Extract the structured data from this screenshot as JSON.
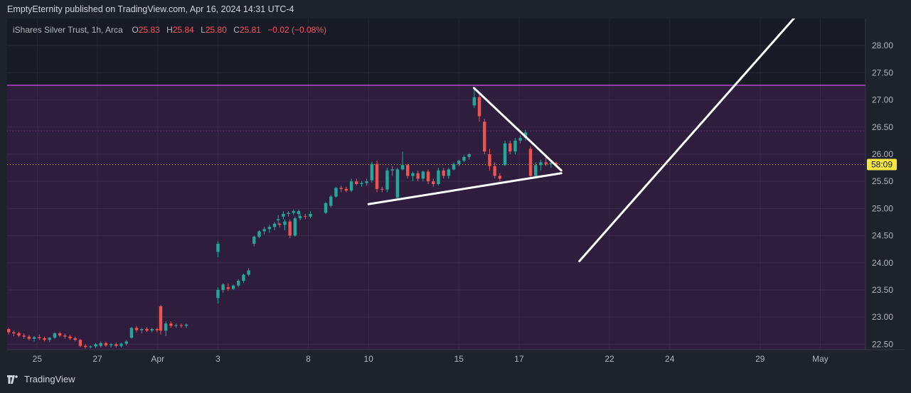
{
  "header": {
    "publisher": "EmptyEternity published on TradingView.com, Apr 16, 2024 14:31 UTC-4"
  },
  "legend": {
    "symbol": "iShares Silver Trust, 1h, Arca",
    "o_label": "O",
    "o_value": "25.83",
    "h_label": "H",
    "h_value": "25.84",
    "l_label": "L",
    "l_value": "25.80",
    "c_label": "C",
    "c_value": "25.81",
    "change": "−0.02 (−0.08%)"
  },
  "footer": {
    "brand": "TradingView"
  },
  "colors": {
    "up": "#26a69a",
    "down": "#ef5350",
    "zone_fill": "#9c27b0",
    "zone_line": "#ab47bc",
    "price_tag": "#f5e642",
    "drawing": "#ffffff"
  },
  "chart_data": {
    "type": "candlestick",
    "timeframe": "1h",
    "ylim": [
      22.4,
      28.5
    ],
    "price_ticks": [
      "28.00",
      "27.50",
      "27.00",
      "26.50",
      "26.00",
      "25.50",
      "25.00",
      "24.50",
      "24.00",
      "23.50",
      "23.00",
      "22.50"
    ],
    "x_ticks": [
      {
        "label": "25",
        "day": 25
      },
      {
        "label": "27",
        "day": 27
      },
      {
        "label": "Apr",
        "day": 29
      },
      {
        "label": "3",
        "day": 31
      },
      {
        "label": "8",
        "day": 34
      },
      {
        "label": "10",
        "day": 36
      },
      {
        "label": "15",
        "day": 39
      },
      {
        "label": "17",
        "day": 41
      },
      {
        "label": "22",
        "day": 44
      },
      {
        "label": "24",
        "day": 46
      },
      {
        "label": "29",
        "day": 49
      },
      {
        "label": "May",
        "day": 51
      }
    ],
    "day_range": [
      24.0,
      52.5
    ],
    "current_price": 25.81,
    "price_tag_label": "58:09",
    "resistance_level": 27.27,
    "zone": [
      22.4,
      27.27
    ],
    "dotted_level": 26.43,
    "candles": [
      [
        24.05,
        22.78,
        22.8,
        22.68,
        22.72
      ],
      [
        24.22,
        22.72,
        22.75,
        22.65,
        22.7
      ],
      [
        24.39,
        22.7,
        22.73,
        22.63,
        22.66
      ],
      [
        24.56,
        22.66,
        22.7,
        22.6,
        22.64
      ],
      [
        24.73,
        22.64,
        22.67,
        22.57,
        22.6
      ],
      [
        24.9,
        22.6,
        22.65,
        22.55,
        22.63
      ],
      [
        25.07,
        22.63,
        22.68,
        22.58,
        22.61
      ],
      [
        25.24,
        22.61,
        22.64,
        22.55,
        22.58
      ],
      [
        25.41,
        22.58,
        22.63,
        22.54,
        22.62
      ],
      [
        25.58,
        22.62,
        22.72,
        22.6,
        22.7
      ],
      [
        25.75,
        22.7,
        22.73,
        22.63,
        22.66
      ],
      [
        25.92,
        22.66,
        22.7,
        22.6,
        22.64
      ],
      [
        26.09,
        22.64,
        22.67,
        22.58,
        22.61
      ],
      [
        26.26,
        22.61,
        22.64,
        22.55,
        22.58
      ],
      [
        26.43,
        22.58,
        22.6,
        22.44,
        22.47
      ],
      [
        26.6,
        22.47,
        22.5,
        22.42,
        22.45
      ],
      [
        26.77,
        22.45,
        22.48,
        22.42,
        22.46
      ],
      [
        26.94,
        22.46,
        22.52,
        22.43,
        22.5
      ],
      [
        27.11,
        22.47,
        22.55,
        22.44,
        22.52
      ],
      [
        27.28,
        22.52,
        22.55,
        22.45,
        22.48
      ],
      [
        27.45,
        22.48,
        22.52,
        22.44,
        22.5
      ],
      [
        27.62,
        22.5,
        22.53,
        22.44,
        22.47
      ],
      [
        27.79,
        22.47,
        22.53,
        22.44,
        22.51
      ],
      [
        27.96,
        22.51,
        22.58,
        22.48,
        22.55
      ],
      [
        28.13,
        22.62,
        22.82,
        22.6,
        22.8
      ],
      [
        28.3,
        22.8,
        22.83,
        22.72,
        22.76
      ],
      [
        28.47,
        22.76,
        22.8,
        22.7,
        22.78
      ],
      [
        28.64,
        22.78,
        22.81,
        22.73,
        22.75
      ],
      [
        28.81,
        22.75,
        22.8,
        22.72,
        22.78
      ],
      [
        28.98,
        22.78,
        22.8,
        22.72,
        22.76
      ],
      [
        29.1,
        23.2,
        23.22,
        22.68,
        22.75
      ],
      [
        29.27,
        22.75,
        22.92,
        22.65,
        22.88
      ],
      [
        29.44,
        22.88,
        22.92,
        22.8,
        22.84
      ],
      [
        29.61,
        22.84,
        22.88,
        22.8,
        22.85
      ],
      [
        29.78,
        22.85,
        22.88,
        22.8,
        22.84
      ],
      [
        29.95,
        22.84,
        22.88,
        22.8,
        22.86
      ],
      [
        31.0,
        23.35,
        23.55,
        23.25,
        23.5
      ],
      [
        31.17,
        23.5,
        23.62,
        23.45,
        23.6
      ],
      [
        31.34,
        23.55,
        23.62,
        23.48,
        23.52
      ],
      [
        31.51,
        23.52,
        23.6,
        23.5,
        23.58
      ],
      [
        31.68,
        23.58,
        23.7,
        23.55,
        23.67
      ],
      [
        31.85,
        23.67,
        23.8,
        23.63,
        23.78
      ],
      [
        32.02,
        23.78,
        23.9,
        23.75,
        23.86
      ],
      [
        31.0,
        24.2,
        24.4,
        24.1,
        24.35
      ],
      [
        32.2,
        24.35,
        24.5,
        24.3,
        24.48
      ],
      [
        32.37,
        24.48,
        24.6,
        24.45,
        24.58
      ],
      [
        32.54,
        24.58,
        24.66,
        24.52,
        24.62
      ],
      [
        32.71,
        24.62,
        24.7,
        24.55,
        24.66
      ],
      [
        32.88,
        24.66,
        24.75,
        24.6,
        24.72
      ],
      [
        33.05,
        24.72,
        24.74,
        24.65,
        24.7
      ],
      [
        33.22,
        24.7,
        24.8,
        24.6,
        24.76
      ],
      [
        33.39,
        24.76,
        24.8,
        24.45,
        24.5
      ],
      [
        33.56,
        24.5,
        24.85,
        24.48,
        24.82
      ],
      [
        33.73,
        24.82,
        24.9,
        24.78,
        24.86
      ],
      [
        33.9,
        24.86,
        24.9,
        24.8,
        24.85
      ],
      [
        34.07,
        24.85,
        24.95,
        24.82,
        24.9
      ],
      [
        33.0,
        24.78,
        24.88,
        24.7,
        24.8
      ],
      [
        33.17,
        24.85,
        24.95,
        24.8,
        24.9
      ],
      [
        33.34,
        24.9,
        24.95,
        24.85,
        24.92
      ],
      [
        33.51,
        24.92,
        24.98,
        24.88,
        24.95
      ],
      [
        33.68,
        24.9,
        24.98,
        24.85,
        24.95
      ],
      [
        34.58,
        24.92,
        25.12,
        24.9,
        25.1
      ],
      [
        34.75,
        25.05,
        25.25,
        25.02,
        25.22
      ],
      [
        34.92,
        25.22,
        25.4,
        25.2,
        25.38
      ],
      [
        35.09,
        25.38,
        25.42,
        25.3,
        25.36
      ],
      [
        35.26,
        25.36,
        25.4,
        25.3,
        25.33
      ],
      [
        35.43,
        25.33,
        25.55,
        25.3,
        25.5
      ],
      [
        35.6,
        25.5,
        25.55,
        25.42,
        25.45
      ],
      [
        35.77,
        25.45,
        25.5,
        25.4,
        25.47
      ],
      [
        35.94,
        25.47,
        25.55,
        25.42,
        25.5
      ],
      [
        36.11,
        25.52,
        25.86,
        25.48,
        25.82
      ],
      [
        36.28,
        25.82,
        25.88,
        25.3,
        25.36
      ],
      [
        36.45,
        25.36,
        25.4,
        25.3,
        25.35
      ],
      [
        36.62,
        25.35,
        25.75,
        25.3,
        25.7
      ],
      [
        36.79,
        25.7,
        25.78,
        25.6,
        25.72
      ],
      [
        36.96,
        25.2,
        25.75,
        25.15,
        25.72
      ],
      [
        37.13,
        25.72,
        26.05,
        25.7,
        25.8
      ],
      [
        37.3,
        25.8,
        25.82,
        25.55,
        25.6
      ],
      [
        37.47,
        25.6,
        25.68,
        25.5,
        25.65
      ],
      [
        37.64,
        25.65,
        25.7,
        25.5,
        25.55
      ],
      [
        37.81,
        25.55,
        25.7,
        25.5,
        25.68
      ],
      [
        37.98,
        25.68,
        25.72,
        25.45,
        25.5
      ],
      [
        38.15,
        25.5,
        25.55,
        25.4,
        25.45
      ],
      [
        38.32,
        25.45,
        25.75,
        25.42,
        25.7
      ],
      [
        38.49,
        25.7,
        25.75,
        25.55,
        25.6
      ],
      [
        38.66,
        25.6,
        25.75,
        25.55,
        25.72
      ],
      [
        38.83,
        25.72,
        25.85,
        25.7,
        25.82
      ],
      [
        39.0,
        25.82,
        25.9,
        25.78,
        25.88
      ],
      [
        39.17,
        25.88,
        25.98,
        25.85,
        25.95
      ],
      [
        39.34,
        25.95,
        26.02,
        25.9,
        26.0
      ],
      [
        39.51,
        26.9,
        27.2,
        26.85,
        27.05
      ],
      [
        39.68,
        27.05,
        27.1,
        26.6,
        26.7
      ],
      [
        39.85,
        26.6,
        26.65,
        26.0,
        26.05
      ],
      [
        40.02,
        26.0,
        26.1,
        25.7,
        25.78
      ],
      [
        40.19,
        25.78,
        25.85,
        25.55,
        25.6
      ],
      [
        40.36,
        25.6,
        25.65,
        25.5,
        25.55
      ],
      [
        40.53,
        25.8,
        26.25,
        25.78,
        26.2
      ],
      [
        40.7,
        26.2,
        26.25,
        26.0,
        26.05
      ],
      [
        40.87,
        26.05,
        26.3,
        26.0,
        26.25
      ],
      [
        41.04,
        26.25,
        26.35,
        26.2,
        26.3
      ],
      [
        41.21,
        26.3,
        26.45,
        26.25,
        26.4
      ],
      [
        41.38,
        26.1,
        26.15,
        25.55,
        25.6
      ],
      [
        41.55,
        25.6,
        25.85,
        25.55,
        25.8
      ],
      [
        41.72,
        25.8,
        25.9,
        25.7,
        25.85
      ],
      [
        41.89,
        25.85,
        25.95,
        25.78,
        25.82
      ],
      [
        42.06,
        25.82,
        25.88,
        25.75,
        25.84
      ],
      [
        42.23,
        25.84,
        25.86,
        25.79,
        25.81
      ]
    ],
    "trendlines": [
      {
        "name": "triangle-upper",
        "from": [
          39.5,
          27.22
        ],
        "to": [
          42.4,
          25.7
        ]
      },
      {
        "name": "triangle-lower",
        "from": [
          36.0,
          25.08
        ],
        "to": [
          42.4,
          25.65
        ]
      },
      {
        "name": "projection",
        "from": [
          43.0,
          24.03
        ],
        "to": [
          50.2,
          28.55
        ]
      }
    ]
  }
}
